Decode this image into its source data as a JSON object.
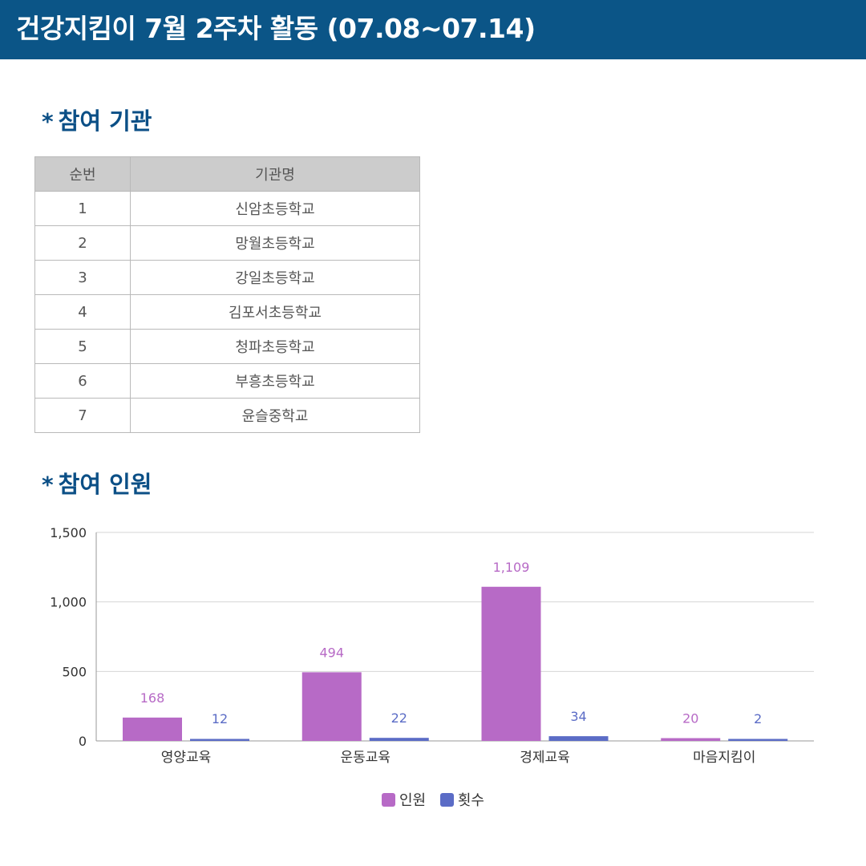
{
  "header": {
    "title": "건강지킴이 7월 2주차 활동 (07.08~07.14)"
  },
  "section_institutions": {
    "bullet": "*",
    "title": "참여 기관"
  },
  "institutions_table": {
    "columns": [
      "순번",
      "기관명"
    ],
    "rows": [
      [
        "1",
        "신암초등학교"
      ],
      [
        "2",
        "망월초등학교"
      ],
      [
        "3",
        "강일초등학교"
      ],
      [
        "4",
        "김포서초등학교"
      ],
      [
        "5",
        "청파초등학교"
      ],
      [
        "6",
        "부흥초등학교"
      ],
      [
        "7",
        "윤슬중학교"
      ]
    ]
  },
  "section_participants": {
    "bullet": "*",
    "title": "참여 인원"
  },
  "chart_data": {
    "type": "bar",
    "categories": [
      "영양교육",
      "운동교육",
      "경제교육",
      "마음지킴이"
    ],
    "series": [
      {
        "name": "인원",
        "values": [
          168,
          494,
          1109,
          20
        ],
        "labels": [
          "168",
          "494",
          "1,109",
          "20"
        ],
        "color": "#b76ac6",
        "label_color": "#b76ac6"
      },
      {
        "name": "횟수",
        "values": [
          12,
          22,
          34,
          2
        ],
        "labels": [
          "12",
          "22",
          "34",
          "2"
        ],
        "color": "#5b6cc6",
        "label_color": "#5b6cc6"
      }
    ],
    "ylim": [
      0,
      1500
    ],
    "yticks": [
      0,
      500,
      1000,
      1500
    ],
    "ytick_labels": [
      "0",
      "500",
      "1,000",
      "1,500"
    ],
    "grid": true,
    "legend_position": "bottom"
  }
}
